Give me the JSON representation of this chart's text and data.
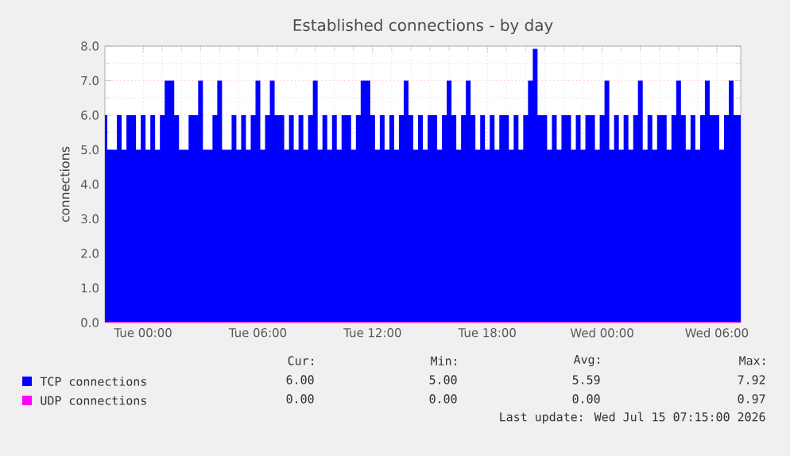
{
  "chart_data": {
    "type": "area",
    "title": "Established connections - by day",
    "ylabel": "connections",
    "x": [
      "2026-07-13T22:00",
      "2026-07-13T22:15",
      "2026-07-13T22:30",
      "2026-07-13T22:45",
      "2026-07-13T23:00",
      "2026-07-13T23:15",
      "2026-07-13T23:30",
      "2026-07-13T23:45",
      "2026-07-14T00:00",
      "2026-07-14T00:15",
      "2026-07-14T00:30",
      "2026-07-14T00:45",
      "2026-07-14T01:00",
      "2026-07-14T01:15",
      "2026-07-14T01:30",
      "2026-07-14T01:45",
      "2026-07-14T02:00",
      "2026-07-14T02:15",
      "2026-07-14T02:30",
      "2026-07-14T02:45",
      "2026-07-14T03:00",
      "2026-07-14T03:15",
      "2026-07-14T03:30",
      "2026-07-14T03:45",
      "2026-07-14T04:00",
      "2026-07-14T04:15",
      "2026-07-14T04:30",
      "2026-07-14T04:45",
      "2026-07-14T05:00",
      "2026-07-14T05:15",
      "2026-07-14T05:30",
      "2026-07-14T05:45",
      "2026-07-14T06:00",
      "2026-07-14T06:15",
      "2026-07-14T06:30",
      "2026-07-14T06:45",
      "2026-07-14T07:00",
      "2026-07-14T07:15",
      "2026-07-14T07:30",
      "2026-07-14T07:45",
      "2026-07-14T08:00",
      "2026-07-14T08:15",
      "2026-07-14T08:30",
      "2026-07-14T08:45",
      "2026-07-14T09:00",
      "2026-07-14T09:15",
      "2026-07-14T09:30",
      "2026-07-14T09:45",
      "2026-07-14T10:00",
      "2026-07-14T10:15",
      "2026-07-14T10:30",
      "2026-07-14T10:45",
      "2026-07-14T11:00",
      "2026-07-14T11:15",
      "2026-07-14T11:30",
      "2026-07-14T11:45",
      "2026-07-14T12:00",
      "2026-07-14T12:15",
      "2026-07-14T12:30",
      "2026-07-14T12:45",
      "2026-07-14T13:00",
      "2026-07-14T13:15",
      "2026-07-14T13:30",
      "2026-07-14T13:45",
      "2026-07-14T14:00",
      "2026-07-14T14:15",
      "2026-07-14T14:30",
      "2026-07-14T14:45",
      "2026-07-14T15:00",
      "2026-07-14T15:15",
      "2026-07-14T15:30",
      "2026-07-14T15:45",
      "2026-07-14T16:00",
      "2026-07-14T16:15",
      "2026-07-14T16:30",
      "2026-07-14T16:45",
      "2026-07-14T17:00",
      "2026-07-14T17:15",
      "2026-07-14T17:30",
      "2026-07-14T17:45",
      "2026-07-14T18:00",
      "2026-07-14T18:15",
      "2026-07-14T18:30",
      "2026-07-14T18:45",
      "2026-07-14T19:00",
      "2026-07-14T19:15",
      "2026-07-14T19:30",
      "2026-07-14T19:45",
      "2026-07-14T20:00",
      "2026-07-14T20:15",
      "2026-07-14T20:30",
      "2026-07-14T20:45",
      "2026-07-14T21:00",
      "2026-07-14T21:15",
      "2026-07-14T21:30",
      "2026-07-14T21:45",
      "2026-07-14T22:00",
      "2026-07-14T22:15",
      "2026-07-14T22:30",
      "2026-07-14T22:45",
      "2026-07-14T23:00",
      "2026-07-14T23:15",
      "2026-07-14T23:30",
      "2026-07-14T23:45",
      "2026-07-15T00:00",
      "2026-07-15T00:15",
      "2026-07-15T00:30",
      "2026-07-15T00:45",
      "2026-07-15T01:00",
      "2026-07-15T01:15",
      "2026-07-15T01:30",
      "2026-07-15T01:45",
      "2026-07-15T02:00",
      "2026-07-15T02:15",
      "2026-07-15T02:30",
      "2026-07-15T02:45",
      "2026-07-15T03:00",
      "2026-07-15T03:15",
      "2026-07-15T03:30",
      "2026-07-15T03:45",
      "2026-07-15T04:00",
      "2026-07-15T04:15",
      "2026-07-15T04:30",
      "2026-07-15T04:45",
      "2026-07-15T05:00",
      "2026-07-15T05:15",
      "2026-07-15T05:30",
      "2026-07-15T05:45",
      "2026-07-15T06:00",
      "2026-07-15T06:15",
      "2026-07-15T06:30",
      "2026-07-15T06:45",
      "2026-07-15T07:00",
      "2026-07-15T07:15"
    ],
    "series": [
      {
        "name": "TCP connections",
        "color": "#0000ff",
        "values": [
          6,
          5,
          5,
          6,
          5,
          6,
          6,
          5,
          6,
          5,
          6,
          5,
          6,
          7,
          7,
          6,
          5,
          5,
          6,
          6,
          7,
          5,
          5,
          6,
          7,
          5,
          5,
          6,
          5,
          6,
          5,
          6,
          7,
          5,
          6,
          7,
          6,
          6,
          5,
          6,
          5,
          6,
          5,
          6,
          7,
          5,
          6,
          5,
          6,
          5,
          6,
          6,
          5,
          6,
          7,
          7,
          6,
          5,
          6,
          5,
          6,
          5,
          6,
          7,
          6,
          5,
          6,
          5,
          6,
          6,
          5,
          6,
          7,
          6,
          5,
          6,
          7,
          6,
          5,
          6,
          5,
          6,
          5,
          6,
          6,
          5,
          6,
          5,
          6,
          7,
          7.92,
          6,
          6,
          5,
          6,
          5,
          6,
          6,
          5,
          6,
          5,
          6,
          6,
          5,
          6,
          7,
          5,
          6,
          5,
          6,
          5,
          6,
          7,
          5,
          6,
          5,
          6,
          6,
          5,
          6,
          7,
          6,
          5,
          6,
          5,
          6,
          7,
          6,
          6,
          5,
          6,
          7,
          6,
          6
        ]
      },
      {
        "name": "UDP connections",
        "color": "#ff00ff",
        "type": "line",
        "values": [
          0,
          0,
          0,
          0,
          0,
          0,
          0,
          0,
          0,
          0,
          0,
          0,
          0,
          0,
          0,
          0,
          0,
          0,
          0,
          0,
          0,
          0,
          0,
          0,
          0,
          0,
          0,
          0,
          0,
          0,
          0,
          0,
          0,
          0,
          0,
          0,
          0,
          0,
          0,
          0,
          0,
          0,
          0,
          0,
          0,
          0,
          0,
          0,
          0,
          0,
          0,
          0,
          0,
          0,
          0,
          0,
          0,
          0,
          0,
          0,
          0,
          0,
          0,
          0,
          0,
          0,
          0,
          0,
          0,
          0,
          0,
          0,
          0,
          0,
          0,
          0,
          0,
          0,
          0,
          0,
          0,
          0,
          0,
          0,
          0,
          0,
          0,
          0,
          0,
          0,
          0,
          0,
          0,
          0,
          0,
          0,
          0,
          0,
          0,
          0,
          0,
          0,
          0,
          0,
          0,
          0,
          0,
          0,
          0,
          0,
          0,
          0,
          0,
          0,
          0,
          0,
          0,
          0,
          0,
          0,
          0,
          0,
          0,
          0,
          0,
          0,
          0,
          0,
          0,
          0,
          0,
          0,
          0,
          0
        ]
      }
    ],
    "xlim": [
      "2026-07-13T22:00",
      "2026-07-15T07:15"
    ],
    "xticks": [
      {
        "value": "2026-07-14T00:00",
        "label": "Tue 00:00"
      },
      {
        "value": "2026-07-14T06:00",
        "label": "Tue 06:00"
      },
      {
        "value": "2026-07-14T12:00",
        "label": "Tue 12:00"
      },
      {
        "value": "2026-07-14T18:00",
        "label": "Tue 18:00"
      },
      {
        "value": "2026-07-15T00:00",
        "label": "Wed 00:00"
      },
      {
        "value": "2026-07-15T06:00",
        "label": "Wed 06:00"
      }
    ],
    "ylim": [
      0,
      8
    ],
    "yticks": [
      {
        "value": 0,
        "label": "0.0"
      },
      {
        "value": 1,
        "label": "1.0"
      },
      {
        "value": 2,
        "label": "2.0"
      },
      {
        "value": 3,
        "label": "3.0"
      },
      {
        "value": 4,
        "label": "4.0"
      },
      {
        "value": 5,
        "label": "5.0"
      },
      {
        "value": 6,
        "label": "6.0"
      },
      {
        "value": 7,
        "label": "7.0"
      },
      {
        "value": 8,
        "label": "8.0"
      }
    ],
    "grid": true,
    "legend": "bottom",
    "marker": "none",
    "annotations": [
      "Cur:",
      "Min:",
      "Avg:",
      "Max:",
      "6.00",
      "5.00",
      "5.59",
      "7.92",
      "0.00",
      "0.00",
      "0.00",
      "0.97",
      "Last update: Wed Jul 15 07:15:00 2026"
    ]
  }
}
